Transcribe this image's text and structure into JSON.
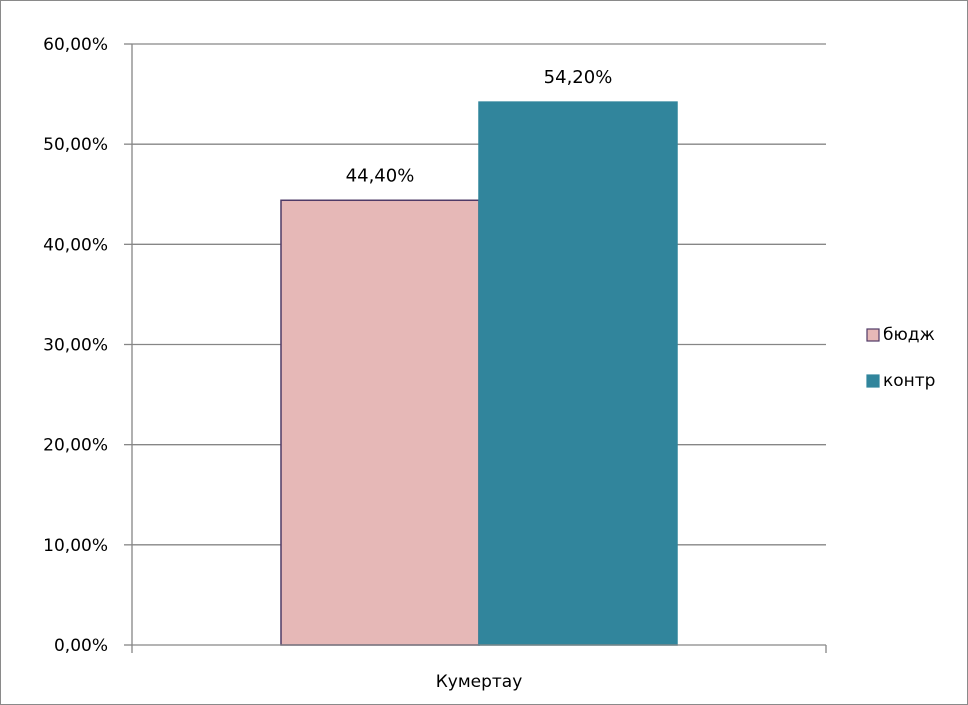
{
  "chart_data": {
    "type": "bar",
    "categories": [
      "Кумертау"
    ],
    "series": [
      {
        "name": "бюдж",
        "values": [
          44.4
        ],
        "label": "44,40%",
        "color": "#e6b8b7",
        "stroke": "#4f3a66"
      },
      {
        "name": "контр",
        "values": [
          54.2
        ],
        "label": "54,20%",
        "color": "#31859c",
        "stroke": "#31859c"
      }
    ],
    "ylim": [
      0,
      60
    ],
    "yticks": [
      "0,00%",
      "10,00%",
      "20,00%",
      "30,00%",
      "40,00%",
      "50,00%",
      "60,00%"
    ],
    "xlabel": "",
    "ylabel": "",
    "title": "",
    "grid": true,
    "legend_position": "right",
    "axis_color": "#868686"
  }
}
